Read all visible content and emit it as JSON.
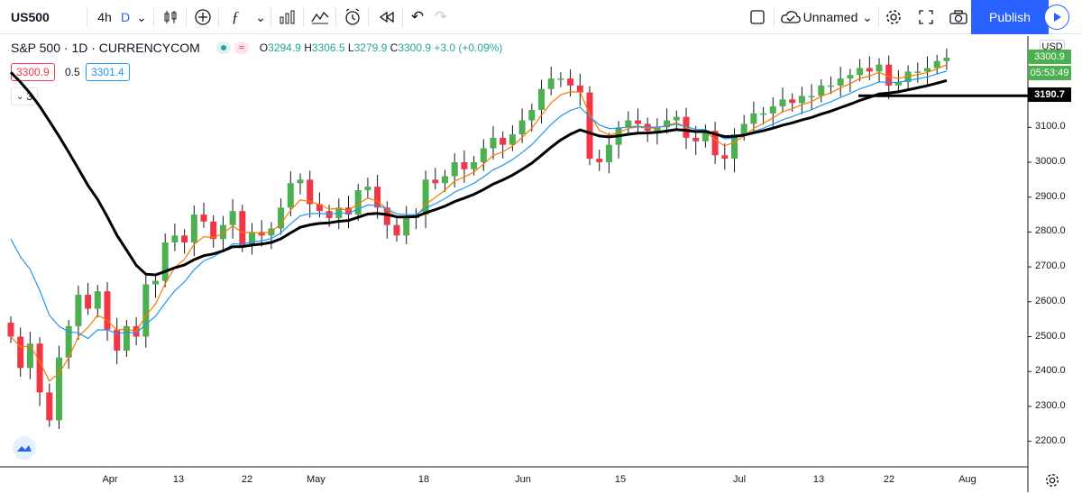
{
  "toolbar": {
    "symbol": "US500",
    "interval_hours": "4h",
    "interval_day": "D",
    "layout_name": "Unnamed",
    "publish_label": "Publish"
  },
  "legend": {
    "title": "S&P 500 · 1D · CURRENCYCOM",
    "o_label": "O",
    "o_value": "3294.9",
    "h_label": "H",
    "h_value": "3306.5",
    "l_label": "L",
    "l_value": "3279.9",
    "c_label": "C",
    "c_value": "3300.9",
    "change": "+3.0 (+0.09%)",
    "bid": "3300.9",
    "spread": "0.5",
    "ask": "3301.4",
    "indicator_count": "3"
  },
  "axis": {
    "currency": "USD",
    "price_ticks": [
      "2200.0",
      "2300.0",
      "2400.0",
      "2500.0",
      "2600.0",
      "2700.0",
      "2800.0",
      "2900.0",
      "3000.0",
      "3100.0"
    ],
    "date_ticks": [
      "Apr",
      "13",
      "22",
      "May",
      "18",
      "Jun",
      "15",
      "Jul",
      "13",
      "22",
      "Aug"
    ],
    "last_price": "3300.9",
    "countdown": "05:53:49",
    "line_price": "3190.7"
  },
  "colors": {
    "up": "#4caf50",
    "down": "#f23645",
    "ema_fast": "#f57c00",
    "ema_mid": "#2196f3",
    "ema_slow": "#000000",
    "accent": "#2962ff"
  },
  "chart_data": {
    "type": "candlestick",
    "ylim": [
      2150,
      3350
    ],
    "candles_close": [
      2500,
      2410,
      2480,
      2340,
      2260,
      2440,
      2530,
      2620,
      2580,
      2630,
      2520,
      2460,
      2530,
      2500,
      2650,
      2660,
      2770,
      2790,
      2770,
      2850,
      2830,
      2780,
      2820,
      2860,
      2760,
      2800,
      2790,
      2810,
      2870,
      2940,
      2950,
      2880,
      2860,
      2840,
      2870,
      2850,
      2920,
      2930,
      2870,
      2820,
      2790,
      2840,
      2850,
      2950,
      2940,
      2960,
      3000,
      2980,
      3000,
      3040,
      3070,
      3050,
      3080,
      3120,
      3150,
      3210,
      3240,
      3240,
      3220,
      3200,
      3010,
      3000,
      3050,
      3100,
      3120,
      3110,
      3090,
      3100,
      3120,
      3130,
      3070,
      3060,
      3090,
      3020,
      3010,
      3080,
      3110,
      3140,
      3140,
      3160,
      3180,
      3170,
      3190,
      3190,
      3220,
      3220,
      3240,
      3250,
      3270,
      3260,
      3280,
      3220,
      3230,
      3260,
      3260,
      3270,
      3290,
      3300
    ]
  }
}
